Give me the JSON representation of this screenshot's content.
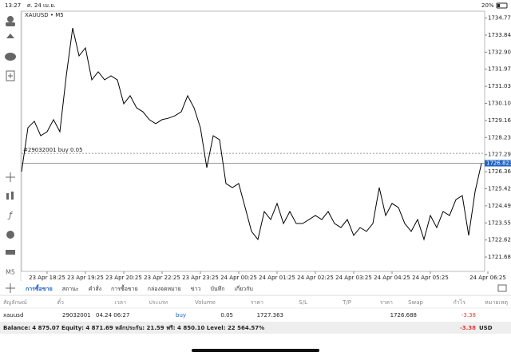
{
  "status_bar": {
    "time": "13:27",
    "date": "ศ. 24 เม.ย.",
    "battery": "20%"
  },
  "chart_data": {
    "type": "line",
    "title": "XAUUSD • M5",
    "color": "#000000",
    "categories": [
      null,
      null,
      null,
      null,
      "23 Apr 18:25",
      null,
      null,
      null,
      null,
      null,
      "23 Apr 19:25",
      null,
      null,
      null,
      null,
      null,
      "23 Apr 20:25",
      null,
      null,
      null,
      null,
      null,
      "23 Apr 22:25",
      null,
      null,
      null,
      null,
      null,
      "23 Apr 23:25",
      null,
      null,
      null,
      null,
      null,
      "24 Apr 00:25",
      null,
      null,
      null,
      null,
      null,
      "24 Apr 01:25",
      null,
      null,
      null,
      null,
      null,
      "24 Apr 02:25",
      null,
      null,
      null,
      null,
      null,
      "24 Apr 03:25",
      null,
      null,
      null,
      null,
      null,
      "24 Apr 04:25",
      null,
      null,
      null,
      null,
      null,
      "24 Apr 05:25",
      null,
      null,
      null,
      null,
      null,
      null,
      null,
      null,
      "24 Apr 06:25"
    ],
    "values": [
      1726.36,
      1728.77,
      1729.12,
      1728.33,
      1728.55,
      1729.21,
      1728.55,
      1731.61,
      1734.23,
      1732.7,
      1733.14,
      1731.39,
      1731.83,
      1731.39,
      1731.61,
      1731.39,
      1730.08,
      1730.52,
      1729.86,
      1729.64,
      1729.21,
      1728.99,
      1729.21,
      1729.29,
      1729.42,
      1729.64,
      1730.52,
      1729.86,
      1728.77,
      1726.58,
      1728.33,
      1728.11,
      1725.71,
      1725.49,
      1725.71,
      1724.4,
      1723.09,
      1722.65,
      1724.18,
      1723.74,
      1724.62,
      1723.52,
      1724.18,
      1723.52,
      1723.52,
      1723.74,
      1723.96,
      1723.74,
      1724.18,
      1723.52,
      1723.3,
      1723.74,
      1722.87,
      1723.3,
      1723.09,
      1723.52,
      1725.49,
      1723.96,
      1724.62,
      1724.4,
      1723.52,
      1723.09,
      1723.74,
      1722.65,
      1723.96,
      1723.3,
      1724.18,
      1723.96,
      1724.83,
      1725.05,
      1722.87,
      1725.27,
      1726.82,
      null
    ],
    "ylim": [
      1720.9,
      1735.15
    ],
    "yticks": [
      1734.775,
      {
        "value": 1733.84,
        "label": "1733.840"
      },
      1732.905,
      {
        "value": 1731.97,
        "label": "1731.970"
      },
      1731.035,
      {
        "value": 1730.1,
        "label": "1730.100"
      },
      1729.165,
      {
        "value": 1728.23,
        "label": "1728.230"
      },
      1727.295,
      {
        "value": 1726.36,
        "label": "1726.360"
      },
      1725.425,
      {
        "value": 1724.49,
        "label": "1724.490"
      },
      1723.555,
      {
        "value": 1722.62,
        "label": "1722.620"
      },
      1721.685
    ],
    "current_price": 1726.823,
    "order_line": {
      "value": 1727.363,
      "label": "#29032001 buy 0.05"
    },
    "timeframe": "M5"
  },
  "tabs": [
    "การซื้อขาย",
    "สถานะ",
    "คำสั่ง",
    "การซื้อขาย",
    "กล่องจดหมาย",
    "ข่าว",
    "บันทึก",
    "เกี่ยวกับ"
  ],
  "table": {
    "headers": [
      "สัญลักษณ์",
      "ตั๋ว",
      "เวลา",
      "ประเภท",
      "Volume",
      "ราคา",
      "S/L",
      "T/P",
      "ราคา",
      "Swap",
      "กำไร",
      "หมายเหตุ"
    ],
    "row": {
      "symbol": "xauusd",
      "ticket": "29032001",
      "time": "04.24 06:27",
      "type": "buy",
      "volume": "0.05",
      "price": "1727.363",
      "current_price": "1726.688",
      "profit": "-3.38"
    }
  },
  "summary": {
    "text": "Balance: 4 875.07 Equity: 4 871.69 หลักประกัน: 21.59 ฟรี: 4 850.10 Level: 22 564.57%",
    "total": "-3.38",
    "currency": "USD"
  }
}
